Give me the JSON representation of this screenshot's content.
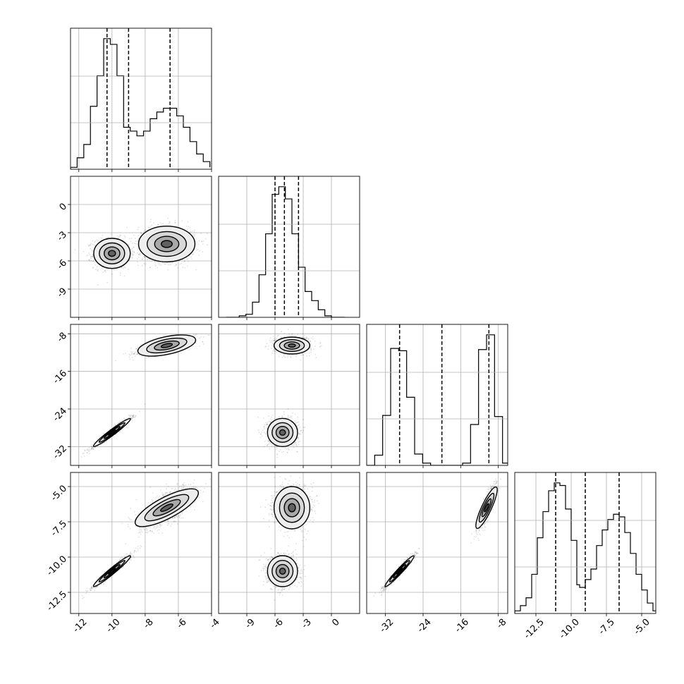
{
  "chart_data": {
    "type": "corner",
    "n_params": 4,
    "axis_ranges": [
      [
        -12.5,
        -4
      ],
      [
        -12,
        3
      ],
      [
        -36,
        -6
      ],
      [
        -14,
        -4
      ]
    ],
    "tick_labels": [
      [
        "-12",
        "-10",
        "-8",
        "-6",
        "-4"
      ],
      [
        "-9",
        "-6",
        "-3",
        "0"
      ],
      [
        "-32",
        "-24",
        "-16",
        "-8"
      ],
      [
        "-12.5",
        "-10.0",
        "-7.5",
        "-5.0"
      ]
    ],
    "tick_values": [
      [
        -12,
        -10,
        -8,
        -6,
        -4
      ],
      [
        -9,
        -6,
        -3,
        0
      ],
      [
        -32,
        -24,
        -16,
        -8
      ],
      [
        -12.5,
        -10.0,
        -7.5,
        -5.0
      ]
    ],
    "quantiles": [
      [
        -10.3,
        -9.0,
        -6.5
      ],
      [
        -6.0,
        -5.0,
        -3.5
      ],
      [
        -29.0,
        -20.0,
        -10.0
      ],
      [
        -11.1,
        -9.0,
        -6.6
      ]
    ],
    "grid": true,
    "histograms": [
      {
        "bin_edges": [
          -12.5,
          -12.1,
          -11.7,
          -11.3,
          -10.9,
          -10.5,
          -10.1,
          -9.7,
          -9.3,
          -8.9,
          -8.5,
          -8.1,
          -7.7,
          -7.3,
          -6.9,
          -6.5,
          -6.1,
          -5.7,
          -5.3,
          -4.9,
          -4.5,
          -4.1
        ],
        "counts": [
          2,
          12,
          26,
          66,
          98,
          137,
          131,
          98,
          44,
          40,
          35,
          40,
          53,
          60,
          64,
          64,
          56,
          44,
          29,
          16,
          8,
          2
        ]
      },
      {
        "bin_edges": [
          -11.2,
          -10.5,
          -9.8,
          -9.1,
          -8.4,
          -7.7,
          -7.0,
          -6.3,
          -5.6,
          -4.9,
          -4.2,
          -3.5,
          -2.8,
          -2.1,
          -1.4,
          -0.7,
          0.0,
          0.7,
          1.4
        ],
        "counts": [
          0,
          0,
          2,
          4,
          20,
          56,
          110,
          162,
          172,
          156,
          110,
          66,
          34,
          22,
          10,
          2,
          0,
          0
        ]
      },
      {
        "bin_edges": [
          -36,
          -34.3,
          -32.6,
          -30.9,
          -29.2,
          -27.5,
          -25.8,
          -24.1,
          -22.4,
          -20.7,
          -19.0,
          -17.3,
          -15.6,
          -13.9,
          -12.2,
          -10.5,
          -8.8,
          -7.1,
          -5.4
        ],
        "counts": [
          0,
          9,
          44,
          103,
          101,
          60,
          10,
          2,
          0,
          0,
          0,
          0,
          2,
          36,
          102,
          115,
          43,
          2
        ]
      },
      {
        "bin_edges": [
          -14.0,
          -13.6,
          -13.2,
          -12.8,
          -12.4,
          -12.0,
          -11.6,
          -11.2,
          -10.8,
          -10.4,
          -10.0,
          -9.6,
          -9.4,
          -9.0,
          -8.6,
          -8.2,
          -7.8,
          -7.4,
          -7.0,
          -6.6,
          -6.2,
          -5.8,
          -5.4,
          -5.0,
          -4.6,
          -4.2,
          -3.8
        ],
        "counts": [
          2,
          6,
          12,
          30,
          58,
          78,
          94,
          100,
          98,
          80,
          56,
          22,
          20,
          26,
          34,
          52,
          64,
          72,
          76,
          74,
          62,
          46,
          30,
          18,
          8,
          2
        ]
      }
    ],
    "modes": [
      {
        "center": [
          -10.0,
          -5.2,
          -29.0,
          -11.0
        ],
        "sd": [
          0.55,
          0.8,
          1.5,
          0.55
        ],
        "corr": [
          [
            1,
            0,
            0.97,
            0.97
          ],
          [
            0,
            1,
            0,
            0
          ],
          [
            0.97,
            0,
            1,
            0.97
          ],
          [
            0.97,
            0,
            0.97,
            1
          ]
        ],
        "weight": 0.5
      },
      {
        "center": [
          -6.7,
          -4.2,
          -10.5,
          -6.5
        ],
        "sd": [
          0.85,
          0.95,
          0.9,
          0.75
        ],
        "corr": [
          [
            1,
            0,
            0.7,
            0.7
          ],
          [
            0,
            1,
            0,
            0
          ],
          [
            0.7,
            0,
            1,
            0.85
          ],
          [
            0.7,
            0,
            0.85,
            1
          ]
        ],
        "weight": 0.5
      }
    ],
    "contour_levels": [
      0.39,
      0.86,
      1.39,
      2.0
    ]
  }
}
